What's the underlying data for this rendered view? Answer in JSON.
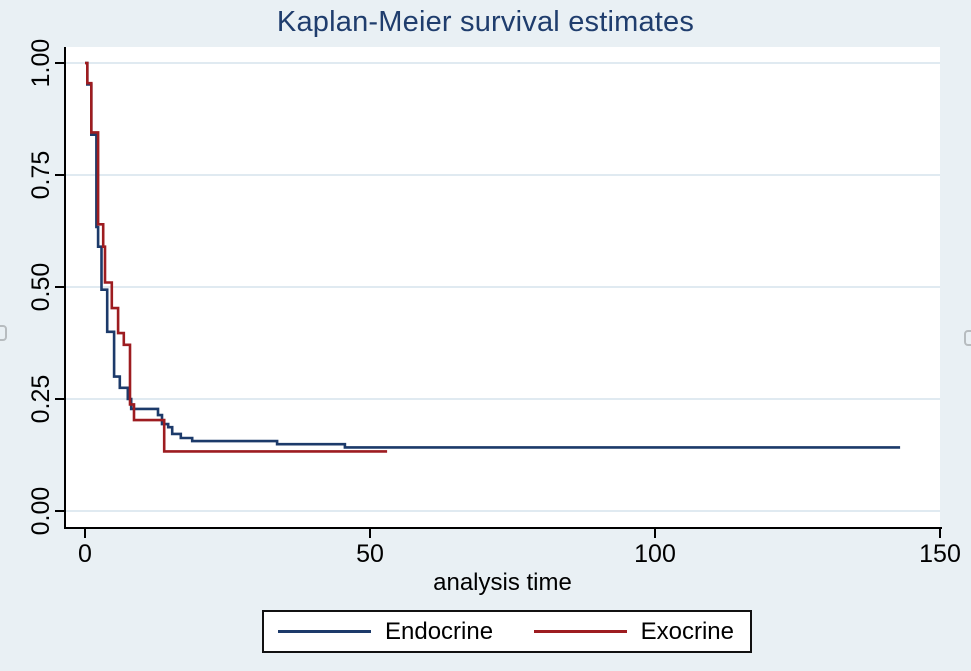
{
  "title": "Kaplan-Meier survival estimates",
  "x_axis": {
    "label": "analysis time",
    "tick_labels": [
      "0",
      "50",
      "100",
      "150"
    ]
  },
  "y_axis": {
    "tick_labels_top_to_bottom": [
      "1.00",
      "0.75",
      "0.50",
      "0.25",
      "0.00"
    ]
  },
  "legend": {
    "items": [
      {
        "label": "Endocrine",
        "color": "#1c3a6a"
      },
      {
        "label": "Exocrine",
        "color": "#9d1c20"
      }
    ]
  },
  "colors": {
    "figure_background": "#e9f0f4",
    "plot_background": "#ffffff",
    "gridline": "#e0eaf1",
    "axis": "#000000",
    "title_text": "#1f3d6d",
    "endocrine_line": "#1c3a6a",
    "exocrine_line": "#9d1c20"
  },
  "chart_data": {
    "type": "line",
    "subtype": "kaplan-meier-step",
    "title": "Kaplan-Meier survival estimates",
    "xlabel": "analysis time",
    "ylabel": "",
    "xlim": [
      0,
      150
    ],
    "ylim": [
      0.0,
      1.0
    ],
    "x_ticks": [
      0,
      50,
      100,
      150
    ],
    "y_ticks": [
      0.0,
      0.25,
      0.5,
      0.75,
      1.0
    ],
    "grid": "horizontal",
    "legend_position": "bottom-outside",
    "series": [
      {
        "name": "Endocrine",
        "color": "#1c3a6a",
        "end_x": 143,
        "points": [
          [
            0,
            1.0
          ],
          [
            0.4,
            0.952
          ],
          [
            1.1,
            0.84
          ],
          [
            2.0,
            0.634
          ],
          [
            2.3,
            0.59
          ],
          [
            2.9,
            0.494
          ],
          [
            3.9,
            0.4
          ],
          [
            5.1,
            0.3
          ],
          [
            6.1,
            0.275
          ],
          [
            7.5,
            0.25
          ],
          [
            8.1,
            0.228
          ],
          [
            12.8,
            0.214
          ],
          [
            13.5,
            0.194
          ],
          [
            14.6,
            0.187
          ],
          [
            15.3,
            0.172
          ],
          [
            16.8,
            0.163
          ],
          [
            18.8,
            0.156
          ],
          [
            33.7,
            0.149
          ],
          [
            45.6,
            0.142
          ]
        ]
      },
      {
        "name": "Exocrine",
        "color": "#9d1c20",
        "end_x": 53,
        "points": [
          [
            0,
            1.0
          ],
          [
            0.4,
            0.955
          ],
          [
            1.1,
            0.845
          ],
          [
            2.3,
            0.64
          ],
          [
            3.2,
            0.59
          ],
          [
            3.5,
            0.51
          ],
          [
            4.7,
            0.453
          ],
          [
            5.8,
            0.397
          ],
          [
            6.8,
            0.371
          ],
          [
            7.9,
            0.238
          ],
          [
            8.6,
            0.203
          ],
          [
            13.9,
            0.133
          ]
        ]
      }
    ]
  }
}
